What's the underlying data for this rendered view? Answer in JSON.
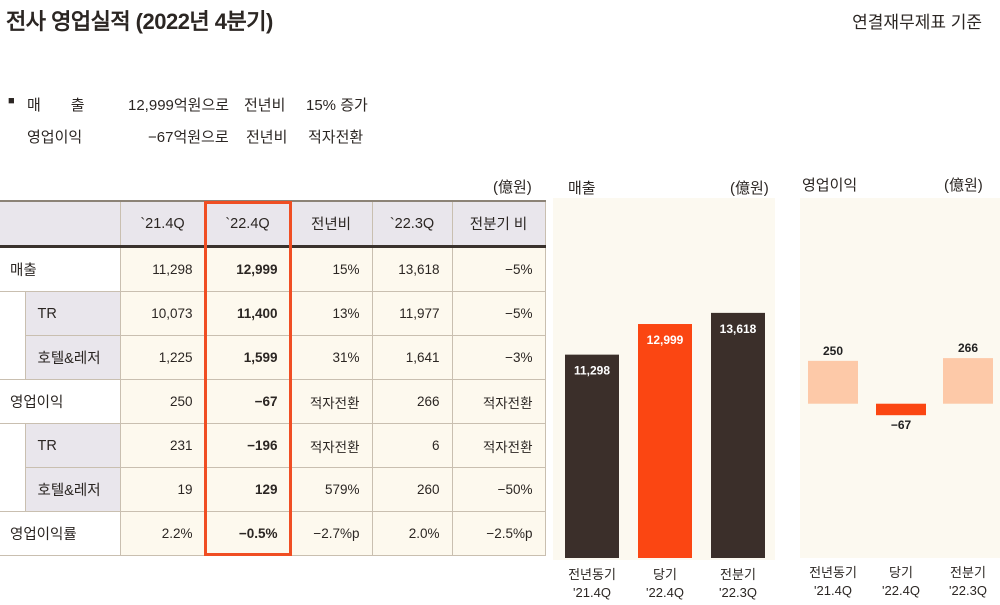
{
  "header": {
    "title": "전사 영업실적 (2022년 4분기)",
    "basis": "연결재무제표 기준"
  },
  "summary": [
    {
      "bullet": "■",
      "label": "매　　출",
      "value": "12,999억원으로",
      "compare": "전년비",
      "result": "15% 증가"
    },
    {
      "bullet": "",
      "label": "영업이익",
      "value": "−67억원으로",
      "compare": "전년비",
      "result": "적자전환"
    }
  ],
  "table": {
    "unit": "(億원)",
    "columns": [
      "",
      "`21.4Q",
      "`22.4Q",
      "전년비",
      "`22.3Q",
      "전분기 비"
    ],
    "rows": [
      {
        "label": "매출",
        "level": 0,
        "cells": [
          "11,298",
          "12,999",
          "15%",
          "13,618",
          "−5%"
        ]
      },
      {
        "label": "TR",
        "level": 1,
        "cells": [
          "10,073",
          "11,400",
          "13%",
          "11,977",
          "−5%"
        ]
      },
      {
        "label": "호텔&레저",
        "level": 1,
        "cells": [
          "1,225",
          "1,599",
          "31%",
          "1,641",
          "−3%"
        ]
      },
      {
        "label": "영업이익",
        "level": 0,
        "cells": [
          "250",
          "−67",
          "적자전환",
          "266",
          "적자전환"
        ]
      },
      {
        "label": "TR",
        "level": 1,
        "cells": [
          "231",
          "−196",
          "적자전환",
          "6",
          "적자전환"
        ]
      },
      {
        "label": "호텔&레저",
        "level": 1,
        "cells": [
          "19",
          "129",
          "579%",
          "260",
          "−50%"
        ]
      },
      {
        "label": "영업이익률",
        "level": 0,
        "cells": [
          "2.2%",
          "−0.5%",
          "−2.7%p",
          "2.0%",
          "−2.5%p"
        ]
      }
    ],
    "highlight_color": "#f04e23"
  },
  "chart_data": [
    {
      "type": "bar",
      "title": "매출",
      "unit": "(億원)",
      "categories": [
        [
          "전년동기",
          "'21.4Q"
        ],
        [
          "당기",
          "'22.4Q"
        ],
        [
          "전분기",
          "'22.3Q"
        ]
      ],
      "values": [
        11298,
        12999,
        13618
      ],
      "labels": [
        "11,298",
        "12,999",
        "13,618"
      ],
      "colors": [
        "#3b2f2a",
        "#fb4612",
        "#3b2f2a"
      ],
      "ylim": [
        0,
        20000
      ],
      "grid": false
    },
    {
      "type": "bar",
      "title": "영업이익",
      "unit": "(億원)",
      "categories": [
        [
          "전년동기",
          "'21.4Q"
        ],
        [
          "당기",
          "'22.4Q"
        ],
        [
          "전분기",
          "'22.3Q"
        ]
      ],
      "values": [
        250,
        -67,
        266
      ],
      "labels": [
        "250",
        "−67",
        "266"
      ],
      "colors": [
        "#fdc9a8",
        "#fb4612",
        "#fdc9a8"
      ],
      "ylim": [
        -900,
        1200
      ],
      "grid": false
    }
  ]
}
